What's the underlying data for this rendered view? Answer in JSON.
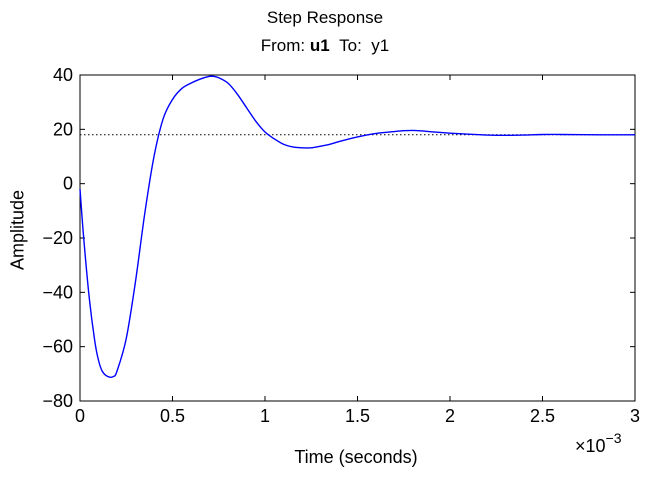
{
  "chart_data": {
    "type": "line",
    "title": "Step Response",
    "subtitle_from_label": "From:",
    "subtitle_from_value": "u1",
    "subtitle_to_label": "To:",
    "subtitle_to_value": "y1",
    "xlabel": "Time (seconds)",
    "ylabel": "Amplitude",
    "x_multiplier_base": "×10",
    "x_multiplier_exp": "−3",
    "xlim": [
      0,
      3
    ],
    "ylim": [
      -80,
      40
    ],
    "xticks": [
      0,
      0.5,
      1,
      1.5,
      2,
      2.5,
      3
    ],
    "xtick_labels": [
      "0",
      "0.5",
      "1",
      "1.5",
      "2",
      "2.5",
      "3"
    ],
    "yticks": [
      -80,
      -60,
      -40,
      -20,
      0,
      20,
      40
    ],
    "ytick_labels": [
      "−80",
      "−60",
      "−40",
      "−20",
      "0",
      "20",
      "40"
    ],
    "grid": false,
    "steady_state": 18,
    "series": [
      {
        "color": "#0000ff",
        "x": [
          0,
          0.02,
          0.05,
          0.08,
          0.1,
          0.12,
          0.15,
          0.18,
          0.2,
          0.25,
          0.3,
          0.35,
          0.4,
          0.45,
          0.5,
          0.55,
          0.6,
          0.65,
          0.7,
          0.72,
          0.75,
          0.8,
          0.85,
          0.9,
          0.95,
          1.0,
          1.05,
          1.1,
          1.15,
          1.2,
          1.25,
          1.3,
          1.35,
          1.4,
          1.5,
          1.6,
          1.7,
          1.75,
          1.8,
          1.85,
          1.9,
          2.0,
          2.1,
          2.2,
          2.3,
          2.4,
          2.5,
          2.6,
          2.8,
          3.0
        ],
        "y": [
          -2,
          -20,
          -42,
          -58,
          -65,
          -69,
          -71,
          -71,
          -69,
          -57,
          -36,
          -11,
          10,
          24,
          31,
          35,
          37,
          38.5,
          39.5,
          39.5,
          39,
          37,
          33,
          28,
          23,
          19,
          16.5,
          14.5,
          13.5,
          13.2,
          13.2,
          13.8,
          14.5,
          15.5,
          17.2,
          18.5,
          19.2,
          19.5,
          19.6,
          19.4,
          19.1,
          18.6,
          18.2,
          17.9,
          17.8,
          17.9,
          18.1,
          18.1,
          18.0,
          18.0
        ]
      }
    ]
  }
}
